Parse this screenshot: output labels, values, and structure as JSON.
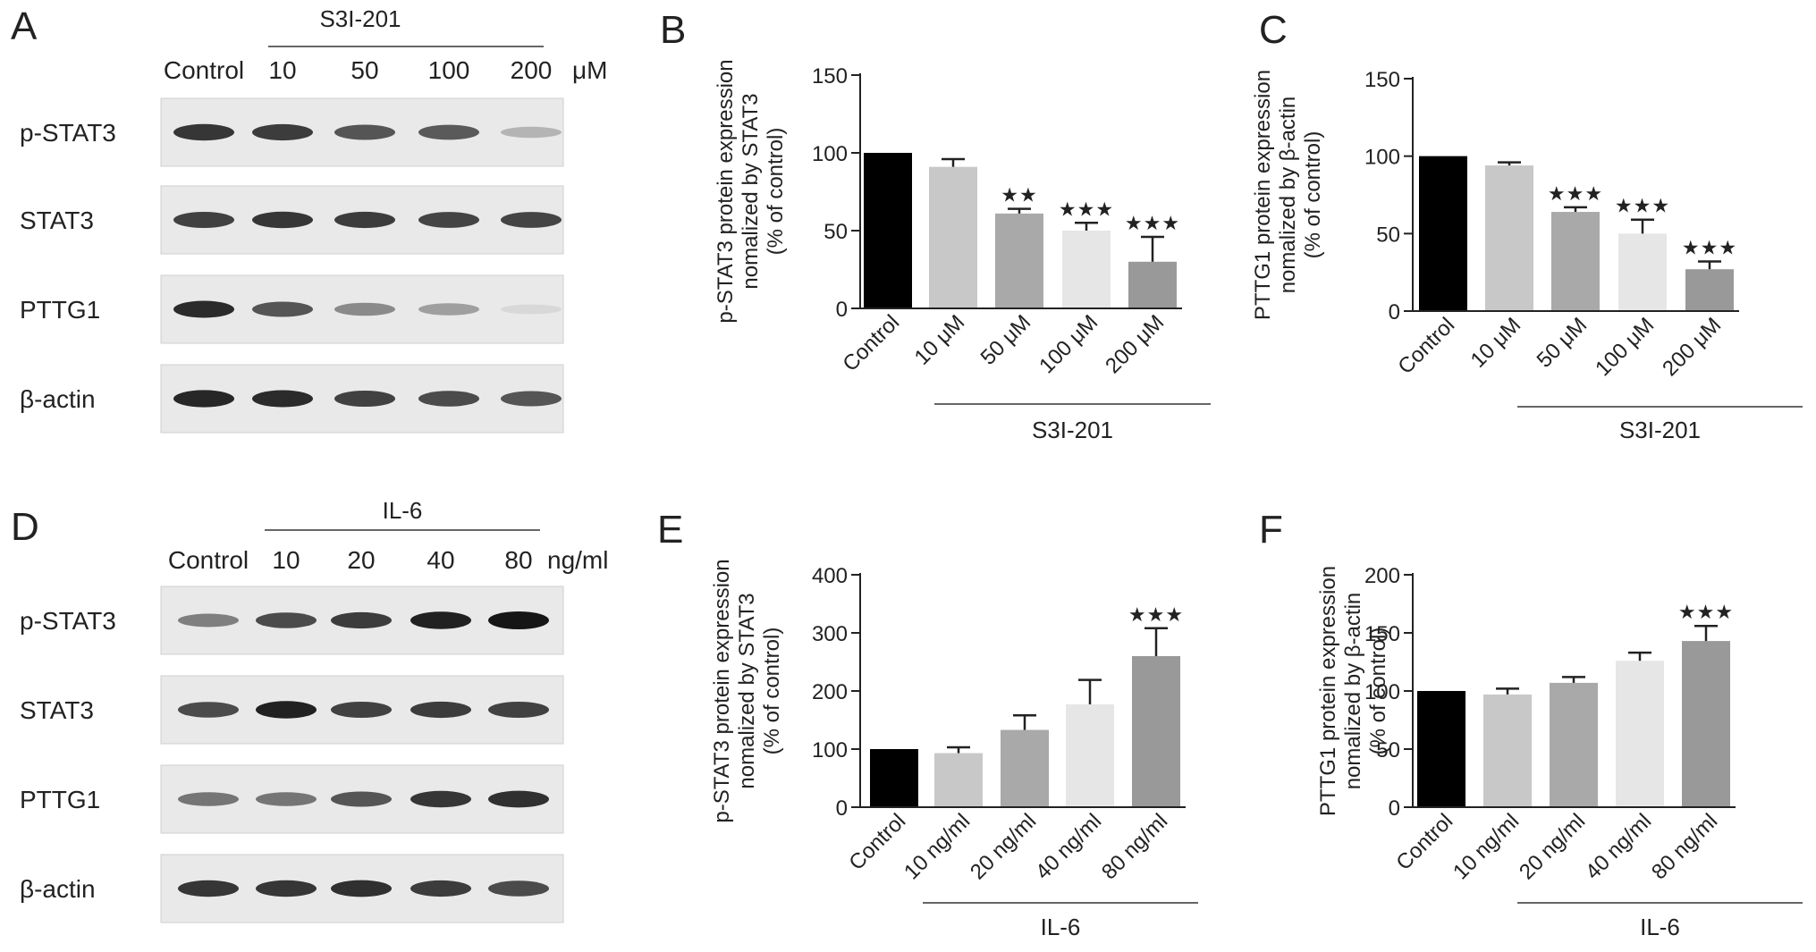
{
  "panels": {
    "A": {
      "letter": "A",
      "treatment": "S3I-201",
      "lane_labels": [
        "Control",
        "10",
        "50",
        "100",
        "200"
      ],
      "unit": "μM",
      "rows": [
        {
          "label": "p-STAT3",
          "intensities": [
            0.85,
            0.82,
            0.7,
            0.68,
            0.25
          ]
        },
        {
          "label": "STAT3",
          "intensities": [
            0.8,
            0.85,
            0.82,
            0.78,
            0.78
          ]
        },
        {
          "label": "PTTG1",
          "intensities": [
            0.9,
            0.7,
            0.45,
            0.35,
            0.08
          ]
        },
        {
          "label": "β-actin",
          "intensities": [
            0.92,
            0.9,
            0.8,
            0.75,
            0.7
          ]
        }
      ]
    },
    "D": {
      "letter": "D",
      "treatment": "IL-6",
      "lane_labels": [
        "Control",
        "10",
        "20",
        "40",
        "80"
      ],
      "unit": "ng/ml",
      "rows": [
        {
          "label": "p-STAT3",
          "intensities": [
            0.5,
            0.75,
            0.82,
            0.95,
            1.0
          ]
        },
        {
          "label": "STAT3",
          "intensities": [
            0.75,
            0.95,
            0.8,
            0.82,
            0.8
          ]
        },
        {
          "label": "PTTG1",
          "intensities": [
            0.55,
            0.55,
            0.7,
            0.85,
            0.88
          ]
        },
        {
          "label": "β-actin",
          "intensities": [
            0.85,
            0.85,
            0.88,
            0.82,
            0.75
          ]
        }
      ]
    }
  },
  "bar_colors": [
    "#000000",
    "#c8c8c8",
    "#a9a9a9",
    "#e6e6e6",
    "#999999"
  ],
  "chart_data": [
    {
      "panel": "B",
      "type": "bar",
      "ylabel": [
        "p-STAT3 protein expression",
        "nomalized by STAT3",
        "(% of control)"
      ],
      "categories": [
        "Control",
        "10 μM",
        "50 μM",
        "100 μM",
        "200 μM"
      ],
      "values": [
        100,
        91,
        61,
        50,
        30
      ],
      "errors": [
        0,
        5,
        3,
        5,
        16
      ],
      "significance": [
        "",
        "",
        "★★",
        "★★★",
        "★★★"
      ],
      "ylim": [
        0,
        150
      ],
      "yticks": [
        0,
        50,
        100,
        150
      ],
      "group_label": "S3I-201"
    },
    {
      "panel": "C",
      "type": "bar",
      "ylabel": [
        "PTTG1 protein expression",
        "nomalized by β-actin",
        "(% of control)"
      ],
      "categories": [
        "Control",
        "10 μM",
        "50 μM",
        "100 μM",
        "200 μM"
      ],
      "values": [
        100,
        94,
        64,
        50,
        27
      ],
      "errors": [
        0,
        2,
        3,
        9,
        5
      ],
      "significance": [
        "",
        "",
        "★★★",
        "★★★",
        "★★★"
      ],
      "ylim": [
        0,
        150
      ],
      "yticks": [
        0,
        50,
        100,
        150
      ],
      "group_label": "S3I-201"
    },
    {
      "panel": "E",
      "type": "bar",
      "ylabel": [
        "p-STAT3 protein expression",
        "nomalized by STAT3",
        "(% of control)"
      ],
      "categories": [
        "Control",
        "10 ng/ml",
        "20 ng/ml",
        "40 ng/ml",
        "80 ng/ml"
      ],
      "values": [
        100,
        93,
        133,
        177,
        260
      ],
      "errors": [
        0,
        10,
        25,
        42,
        48
      ],
      "significance": [
        "",
        "",
        "",
        "",
        "★★★"
      ],
      "ylim": [
        0,
        400
      ],
      "yticks": [
        0,
        100,
        200,
        300,
        400
      ],
      "group_label": "IL-6"
    },
    {
      "panel": "F",
      "type": "bar",
      "ylabel": [
        "PTTG1 protein expression",
        "nomalized by β-actin",
        "(% of control)"
      ],
      "categories": [
        "Control",
        "10 ng/ml",
        "20 ng/ml",
        "40 ng/ml",
        "80 ng/ml"
      ],
      "values": [
        100,
        97,
        107,
        126,
        143
      ],
      "errors": [
        0,
        5,
        5,
        7,
        13
      ],
      "significance": [
        "",
        "",
        "",
        "",
        "★★★"
      ],
      "ylim": [
        0,
        200
      ],
      "yticks": [
        0,
        50,
        100,
        150,
        200
      ],
      "group_label": "IL-6"
    }
  ]
}
